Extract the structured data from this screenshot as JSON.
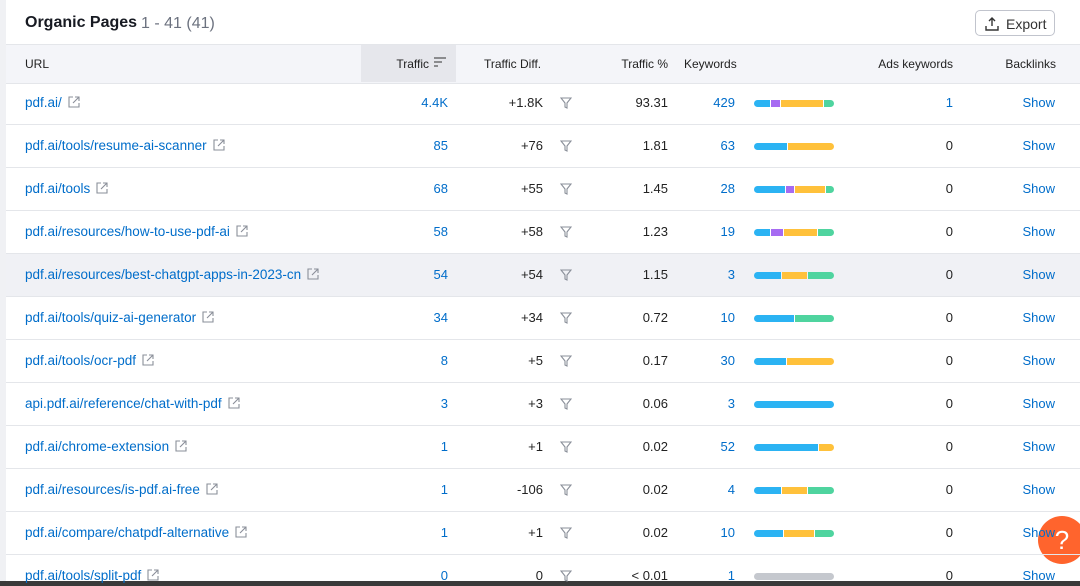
{
  "header": {
    "title": "Organic Pages",
    "count": "1 - 41 (41)",
    "export": "Export"
  },
  "table": {
    "columns": [
      "URL",
      "Traffic",
      "Traffic Diff.",
      "Traffic %",
      "Keywords",
      "Ads keywords",
      "Backlinks"
    ],
    "rows": [
      {
        "url": "pdf.ai/",
        "traffic": "4.4K",
        "diff": "+1.8K",
        "share": "93.31",
        "keywords": "429",
        "intent": [
          {
            "color": "#2bb3f3",
            "value": 21
          },
          {
            "color": "#a66bf2",
            "value": 11
          },
          {
            "color": "#ffc13b",
            "value": 55
          },
          {
            "color": "#4fd49f",
            "value": 13
          }
        ],
        "ads": "1",
        "backlinks": "Show"
      },
      {
        "url": "pdf.ai/tools/resume-ai-scanner",
        "traffic": "85",
        "diff": "+76",
        "share": "1.81",
        "keywords": "63",
        "intent": [
          {
            "color": "#2bb3f3",
            "value": 42
          },
          {
            "color": "#ffc13b",
            "value": 58
          }
        ],
        "ads": "0",
        "backlinks": "Show"
      },
      {
        "url": "pdf.ai/tools",
        "traffic": "68",
        "diff": "+55",
        "share": "1.45",
        "keywords": "28",
        "intent": [
          {
            "color": "#2bb3f3",
            "value": 40
          },
          {
            "color": "#a66bf2",
            "value": 10
          },
          {
            "color": "#ffc13b",
            "value": 39
          },
          {
            "color": "#4fd49f",
            "value": 11
          }
        ],
        "ads": "0",
        "backlinks": "Show"
      },
      {
        "url": "pdf.ai/resources/how-to-use-pdf-ai",
        "traffic": "58",
        "diff": "+58",
        "share": "1.23",
        "keywords": "19",
        "intent": [
          {
            "color": "#2bb3f3",
            "value": 21
          },
          {
            "color": "#a66bf2",
            "value": 15
          },
          {
            "color": "#ffc13b",
            "value": 43
          },
          {
            "color": "#4fd49f",
            "value": 21
          }
        ],
        "ads": "0",
        "backlinks": "Show"
      },
      {
        "url": "pdf.ai/resources/best-chatgpt-apps-in-2023-cn",
        "traffic": "54",
        "diff": "+54",
        "share": "1.15",
        "keywords": "3",
        "intent": [
          {
            "color": "#2bb3f3",
            "value": 34
          },
          {
            "color": "#ffc13b",
            "value": 33
          },
          {
            "color": "#4fd49f",
            "value": 33
          }
        ],
        "ads": "0",
        "backlinks": "Show"
      },
      {
        "url": "pdf.ai/tools/quiz-ai-generator",
        "traffic": "34",
        "diff": "+34",
        "share": "0.72",
        "keywords": "10",
        "intent": [
          {
            "color": "#2bb3f3",
            "value": 50
          },
          {
            "color": "#4fd49f",
            "value": 50
          }
        ],
        "ads": "0",
        "backlinks": "Show"
      },
      {
        "url": "pdf.ai/tools/ocr-pdf",
        "traffic": "8",
        "diff": "+5",
        "share": "0.17",
        "keywords": "30",
        "intent": [
          {
            "color": "#2bb3f3",
            "value": 41
          },
          {
            "color": "#ffc13b",
            "value": 59
          }
        ],
        "ads": "0",
        "backlinks": "Show"
      },
      {
        "url": "api.pdf.ai/reference/chat-with-pdf",
        "traffic": "3",
        "diff": "+3",
        "share": "0.06",
        "keywords": "3",
        "intent": [
          {
            "color": "#2bb3f3",
            "value": 100
          }
        ],
        "ads": "0",
        "backlinks": "Show"
      },
      {
        "url": "pdf.ai/chrome-extension",
        "traffic": "1",
        "diff": "+1",
        "share": "0.02",
        "keywords": "52",
        "intent": [
          {
            "color": "#2bb3f3",
            "value": 81
          },
          {
            "color": "#ffc13b",
            "value": 19
          }
        ],
        "ads": "0",
        "backlinks": "Show"
      },
      {
        "url": "pdf.ai/resources/is-pdf.ai-free",
        "traffic": "1",
        "diff": "-106",
        "share": "0.02",
        "keywords": "4",
        "intent": [
          {
            "color": "#2bb3f3",
            "value": 34
          },
          {
            "color": "#ffc13b",
            "value": 33
          },
          {
            "color": "#4fd49f",
            "value": 33
          }
        ],
        "ads": "0",
        "backlinks": "Show"
      },
      {
        "url": "pdf.ai/compare/chatpdf-alternative",
        "traffic": "1",
        "diff": "+1",
        "share": "0.02",
        "keywords": "10",
        "intent": [
          {
            "color": "#2bb3f3",
            "value": 37
          },
          {
            "color": "#ffc13b",
            "value": 38
          },
          {
            "color": "#4fd49f",
            "value": 25
          }
        ],
        "ads": "0",
        "backlinks": "Show"
      },
      {
        "url": "pdf.ai/tools/split-pdf",
        "traffic": "0",
        "diff": "0",
        "share": "< 0.01",
        "keywords": "1",
        "intent": [
          {
            "color": "#c5c8ce",
            "value": 100
          }
        ],
        "ads": "0",
        "backlinks": "Show"
      }
    ]
  },
  "help": "?"
}
